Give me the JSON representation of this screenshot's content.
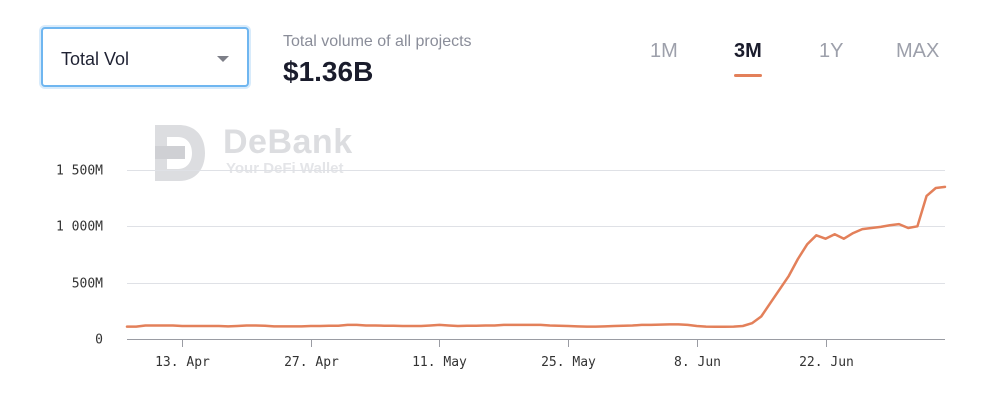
{
  "selector": {
    "label": "Total Vol"
  },
  "header": {
    "subtitle": "Total volume of all projects",
    "total": "$1.36B"
  },
  "tabs": [
    {
      "label": "1M",
      "active": false
    },
    {
      "label": "3M",
      "active": true
    },
    {
      "label": "1Y",
      "active": false
    },
    {
      "label": "MAX",
      "active": false
    }
  ],
  "watermark": {
    "name": "DeBank",
    "tagline": "Your DeFi Wallet"
  },
  "colors": {
    "line": "#e3805a",
    "accent": "#e3805a",
    "select_border": "#6fb6f0"
  },
  "chart_data": {
    "type": "line",
    "title": "",
    "xlabel": "",
    "ylabel": "",
    "ylim": [
      0,
      1500
    ],
    "y_unit": "M",
    "y_ticks": [
      {
        "value": 0,
        "label": "0"
      },
      {
        "value": 500,
        "label": "500M"
      },
      {
        "value": 1000,
        "label": "1 000M"
      },
      {
        "value": 1500,
        "label": "1 500M"
      }
    ],
    "x_ticks": [
      {
        "index": 6,
        "label": "13. Apr"
      },
      {
        "index": 20,
        "label": "27. Apr"
      },
      {
        "index": 34,
        "label": "11. May"
      },
      {
        "index": 48,
        "label": "25. May"
      },
      {
        "index": 62,
        "label": "8. Jun"
      },
      {
        "index": 76,
        "label": "22. Jun"
      }
    ],
    "grid": "horizontal",
    "series": [
      {
        "values": [
          110,
          110,
          120,
          120,
          120,
          120,
          115,
          115,
          115,
          115,
          115,
          112,
          115,
          120,
          120,
          118,
          112,
          112,
          112,
          112,
          115,
          115,
          118,
          118,
          125,
          125,
          120,
          120,
          118,
          118,
          115,
          115,
          115,
          120,
          125,
          120,
          115,
          118,
          118,
          120,
          120,
          125,
          125,
          125,
          125,
          125,
          120,
          118,
          115,
          112,
          110,
          110,
          112,
          115,
          118,
          120,
          125,
          125,
          128,
          130,
          130,
          125,
          115,
          110,
          108,
          108,
          110,
          115,
          140,
          200,
          320,
          440,
          560,
          710,
          840,
          920,
          890,
          930,
          890,
          940,
          975,
          985,
          995,
          1010,
          1020,
          985,
          1000,
          1270,
          1340,
          1350
        ]
      }
    ]
  }
}
